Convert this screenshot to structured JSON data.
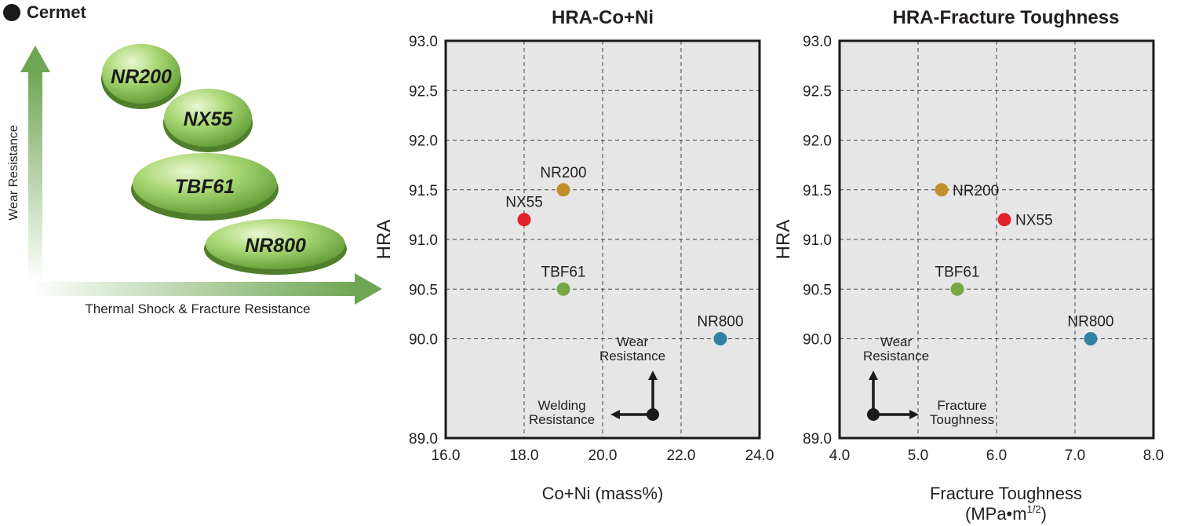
{
  "heading": "Cermet",
  "colors": {
    "NR200": "#c08f2c",
    "NX55": "#e3202a",
    "TBF61": "#77a845",
    "NR800": "#2f82a3",
    "plot_bg": "#e6e6e6",
    "arrow_green": "#6ea653"
  },
  "diagram": {
    "y_axis_label": "Wear Resistance",
    "x_axis_label": "Thermal Shock & Fracture Resistance",
    "grades": [
      "NR200",
      "NX55",
      "TBF61",
      "NR800"
    ]
  },
  "chart_data": [
    {
      "type": "scatter",
      "title": "HRA-Co+Ni",
      "xlabel": "Co+Ni (mass%)",
      "ylabel": "HRA",
      "xlim": [
        16.0,
        24.0
      ],
      "ylim": [
        89.0,
        93.0
      ],
      "x_ticks": [
        "16.0",
        "18.0",
        "20.0",
        "22.0",
        "24.0"
      ],
      "y_ticks": [
        "89.0",
        "90.0",
        "90.5",
        "91.0",
        "91.5",
        "92.0",
        "92.5",
        "93.0"
      ],
      "grid": true,
      "points": [
        {
          "label": "NR200",
          "x": 19.0,
          "y": 91.5
        },
        {
          "label": "NX55",
          "x": 18.0,
          "y": 91.2
        },
        {
          "label": "TBF61",
          "x": 19.0,
          "y": 90.5
        },
        {
          "label": "NR800",
          "x": 23.0,
          "y": 90.0
        }
      ],
      "annotation": {
        "up": "Wear\nResistance",
        "side": "Welding\nResistance"
      }
    },
    {
      "type": "scatter",
      "title": "HRA-Fracture Toughness",
      "xlabel": "Fracture Toughness",
      "xlabel_unit": "(MPa•m",
      "xlabel_unit_sup": "1/2",
      "xlabel_unit_close": ")",
      "ylabel": "HRA",
      "xlim": [
        4.0,
        8.0
      ],
      "ylim": [
        89.0,
        93.0
      ],
      "x_ticks": [
        "4.0",
        "5.0",
        "6.0",
        "7.0",
        "8.0"
      ],
      "y_ticks": [
        "89.0",
        "90.0",
        "90.5",
        "91.0",
        "91.5",
        "92.0",
        "92.5",
        "93.0"
      ],
      "grid": true,
      "points": [
        {
          "label": "NR200",
          "x": 5.3,
          "y": 91.5
        },
        {
          "label": "NX55",
          "x": 6.1,
          "y": 91.2
        },
        {
          "label": "TBF61",
          "x": 5.5,
          "y": 90.5
        },
        {
          "label": "NR800",
          "x": 7.2,
          "y": 90.0
        }
      ],
      "annotation": {
        "up": "Wear\nResistance",
        "side": "Fracture\nToughness"
      }
    }
  ]
}
